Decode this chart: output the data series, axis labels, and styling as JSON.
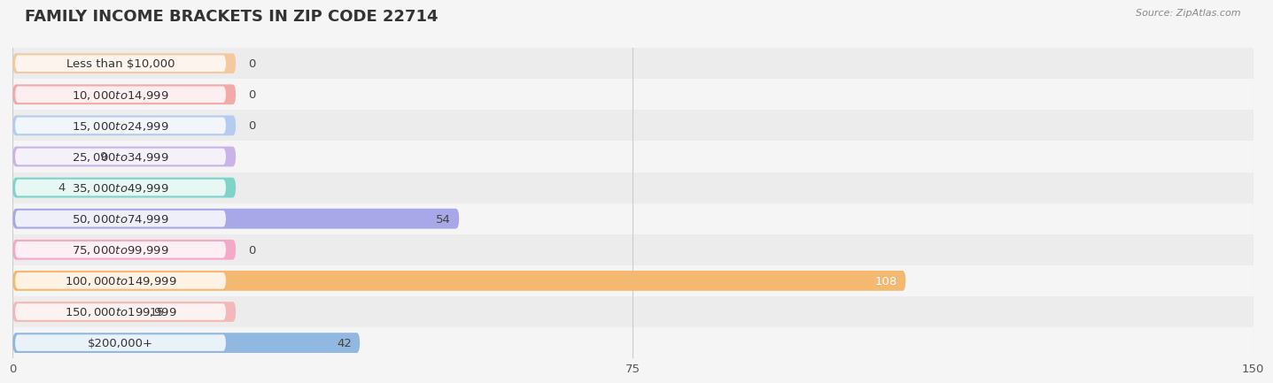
{
  "title": "FAMILY INCOME BRACKETS IN ZIP CODE 22714",
  "source": "Source: ZipAtlas.com",
  "categories": [
    "Less than $10,000",
    "$10,000 to $14,999",
    "$15,000 to $24,999",
    "$25,000 to $34,999",
    "$35,000 to $49,999",
    "$50,000 to $74,999",
    "$75,000 to $99,999",
    "$100,000 to $149,999",
    "$150,000 to $199,999",
    "$200,000+"
  ],
  "values": [
    0,
    0,
    0,
    9,
    4,
    54,
    0,
    108,
    15,
    42
  ],
  "bar_colors": [
    "#f5c9a0",
    "#f5a8a8",
    "#b3ccf0",
    "#c9b3e8",
    "#7dd4c8",
    "#a8a8e8",
    "#f5a8c8",
    "#f5b870",
    "#f5b8b8",
    "#90b8e0"
  ],
  "background_color": "#f5f5f5",
  "xlim": [
    0,
    150
  ],
  "xticks": [
    0,
    75,
    150
  ],
  "title_fontsize": 13,
  "label_fontsize": 9.5,
  "value_fontsize": 9.5,
  "bar_height": 0.65,
  "label_bar_width": 27,
  "row_colors": [
    "#ececec",
    "#f5f5f5"
  ]
}
